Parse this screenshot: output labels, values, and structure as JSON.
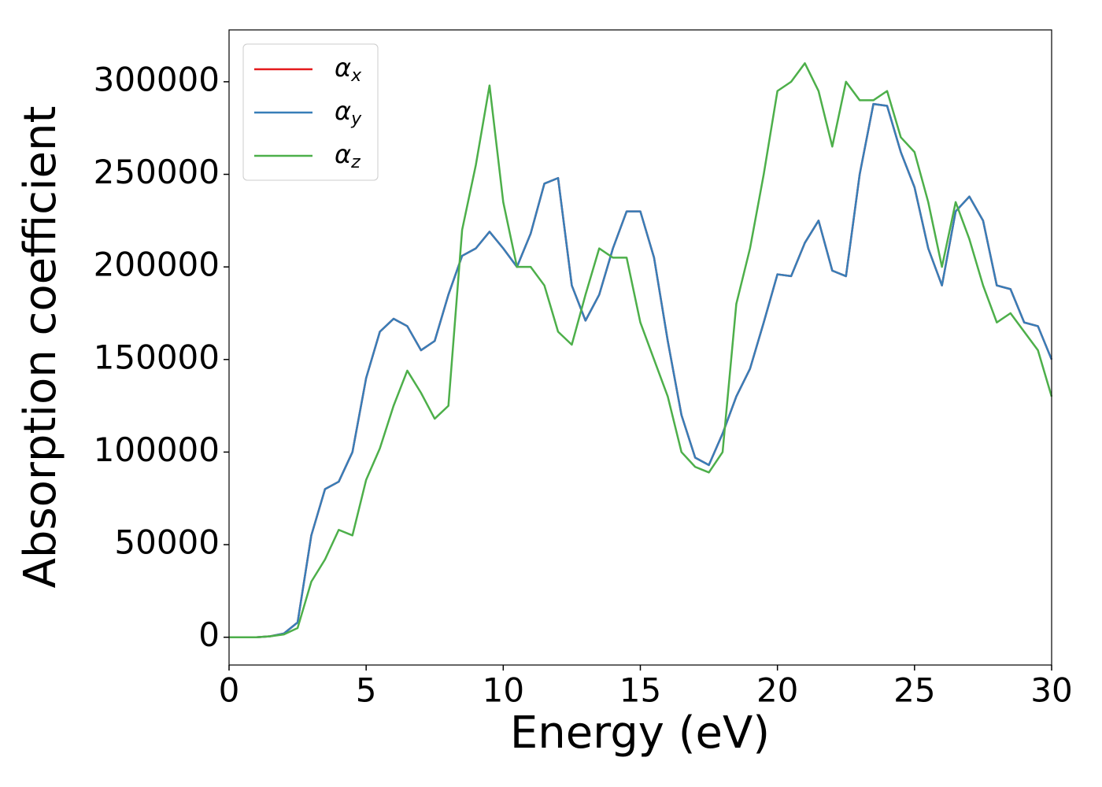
{
  "chart_data": {
    "type": "line",
    "xlabel": "Energy (eV)",
    "ylabel": "Absorption coefficient",
    "x": [
      0,
      0.5,
      1,
      1.5,
      2,
      2.5,
      3,
      3.5,
      4,
      4.5,
      5,
      5.5,
      6,
      6.5,
      7,
      7.5,
      8,
      8.5,
      9,
      9.5,
      10,
      10.5,
      11,
      11.5,
      12,
      12.5,
      13,
      13.5,
      14,
      14.5,
      15,
      15.5,
      16,
      16.5,
      17,
      17.5,
      18,
      18.5,
      19,
      19.5,
      20,
      20.5,
      21,
      21.5,
      22,
      22.5,
      23,
      23.5,
      24,
      24.5,
      25,
      25.5,
      26,
      26.5,
      27,
      27.5,
      28,
      28.5,
      29,
      29.5,
      30
    ],
    "series": [
      {
        "name": "αx",
        "color": "#e41a1c",
        "values": [
          0,
          0,
          0,
          500,
          2000,
          8000,
          55000,
          80000,
          84000,
          100000,
          140000,
          165000,
          172000,
          168000,
          155000,
          160000,
          185000,
          206000,
          210000,
          219000,
          210000,
          200000,
          218000,
          245000,
          248000,
          190000,
          171000,
          185000,
          210000,
          230000,
          230000,
          205000,
          160000,
          120000,
          97000,
          93000,
          110000,
          130000,
          145000,
          170000,
          196000,
          195000,
          213000,
          225000,
          198000,
          195000,
          250000,
          288000,
          287000,
          262000,
          243000,
          210000,
          190000,
          230000,
          238000,
          225000,
          190000,
          188000,
          170000,
          168000,
          150000
        ]
      },
      {
        "name": "αy",
        "color": "#377eb8",
        "values": [
          0,
          0,
          0,
          500,
          2000,
          8000,
          55000,
          80000,
          84000,
          100000,
          140000,
          165000,
          172000,
          168000,
          155000,
          160000,
          185000,
          206000,
          210000,
          219000,
          210000,
          200000,
          218000,
          245000,
          248000,
          190000,
          171000,
          185000,
          210000,
          230000,
          230000,
          205000,
          160000,
          120000,
          97000,
          93000,
          110000,
          130000,
          145000,
          170000,
          196000,
          195000,
          213000,
          225000,
          198000,
          195000,
          250000,
          288000,
          287000,
          262000,
          243000,
          210000,
          190000,
          230000,
          238000,
          225000,
          190000,
          188000,
          170000,
          168000,
          150000
        ]
      },
      {
        "name": "αz",
        "color": "#4daf4a",
        "values": [
          0,
          0,
          0,
          500,
          1500,
          5000,
          30000,
          42000,
          58000,
          55000,
          85000,
          102000,
          125000,
          144000,
          132000,
          118000,
          125000,
          220000,
          255000,
          298000,
          235000,
          200000,
          200000,
          190000,
          165000,
          158000,
          185000,
          210000,
          205000,
          205000,
          170000,
          150000,
          130000,
          100000,
          92000,
          89000,
          100000,
          180000,
          210000,
          250000,
          295000,
          300000,
          310000,
          295000,
          265000,
          300000,
          290000,
          290000,
          295000,
          270000,
          262000,
          235000,
          200000,
          235000,
          215000,
          190000,
          170000,
          175000,
          165000,
          155000,
          130000
        ]
      }
    ],
    "xlim": [
      0,
      30
    ],
    "xticks": [
      0,
      5,
      10,
      15,
      20,
      25,
      30
    ],
    "ylim": [
      -15000,
      328000
    ],
    "yticks": [
      0,
      50000,
      100000,
      150000,
      200000,
      250000,
      300000
    ],
    "legend": "upper left",
    "grid": false
  }
}
